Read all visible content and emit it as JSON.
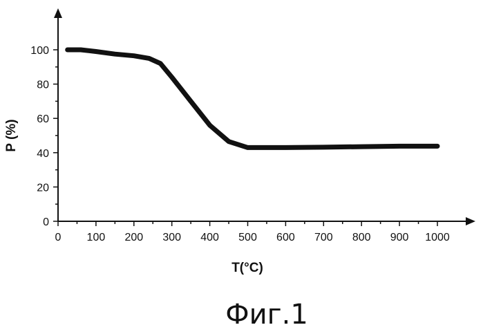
{
  "chart_data": {
    "type": "line",
    "xlabel": "T(°C)",
    "ylabel": "P (%)",
    "xlim": [
      0,
      1000
    ],
    "ylim": [
      0,
      100
    ],
    "xticks": [
      0,
      100,
      200,
      300,
      400,
      500,
      600,
      700,
      800,
      900,
      1000
    ],
    "yticks": [
      0,
      20,
      40,
      60,
      80,
      100
    ],
    "grid": false,
    "series": [
      {
        "x": [
          25,
          60,
          100,
          150,
          200,
          240,
          270,
          300,
          350,
          400,
          450,
          500,
          520,
          560,
          600,
          700,
          800,
          900,
          1000
        ],
        "y": [
          100,
          100,
          99,
          97.5,
          96.5,
          95,
          92,
          84,
          70,
          56,
          46.5,
          43,
          43,
          43,
          43,
          43.2,
          43.5,
          43.8,
          43.8
        ]
      }
    ]
  },
  "caption": "Фиг.1"
}
